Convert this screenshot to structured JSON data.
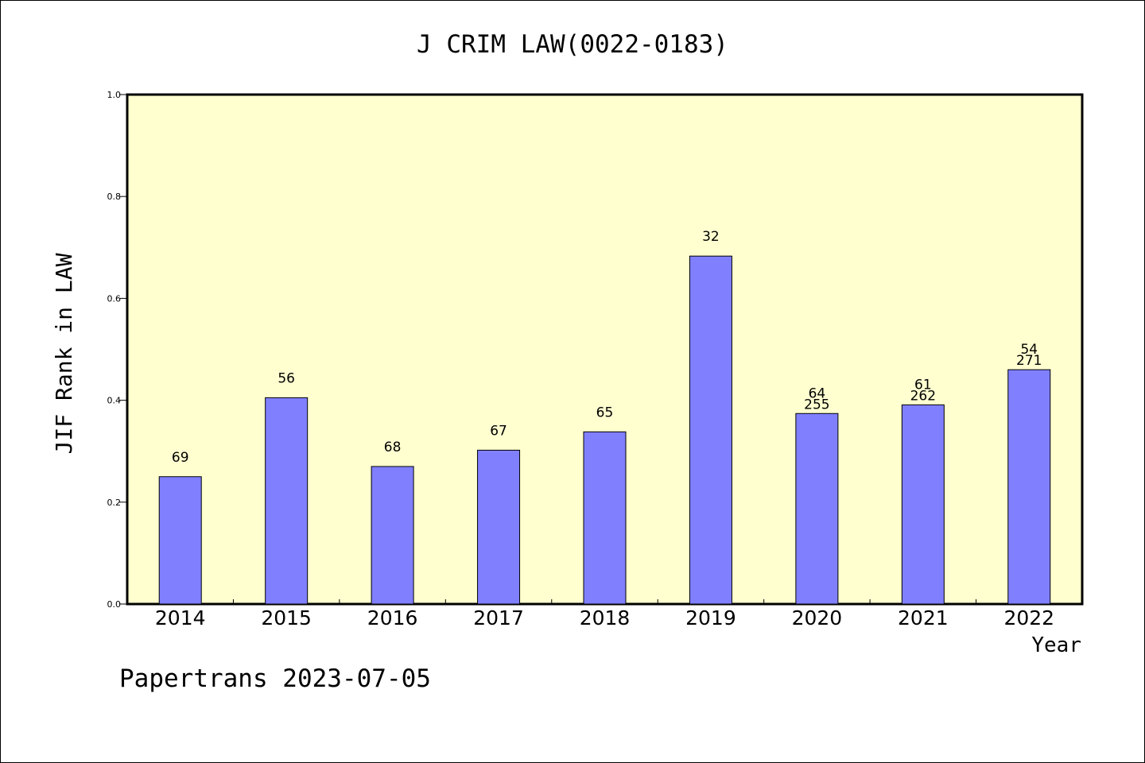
{
  "chart_data": {
    "type": "bar",
    "title": "J CRIM LAW(0022-0183)",
    "ylabel": "JIF Rank in LAW",
    "xlabel": "Year",
    "footer": "Papertrans 2023-07-05",
    "ylim": [
      0,
      1.0
    ],
    "yticks": [
      "0.0",
      "0.2",
      "0.4",
      "0.6",
      "0.8",
      "1.0"
    ],
    "categories": [
      "2014",
      "2015",
      "2016",
      "2017",
      "2018",
      "2019",
      "2020",
      "2021",
      "2022"
    ],
    "values": [
      0.25,
      0.405,
      0.27,
      0.302,
      0.338,
      0.683,
      0.374,
      0.391,
      0.46
    ],
    "labels": [
      [
        "69"
      ],
      [
        "56"
      ],
      [
        "68"
      ],
      [
        "67"
      ],
      [
        "65"
      ],
      [
        "32"
      ],
      [
        "64",
        "255"
      ],
      [
        "61",
        "262"
      ],
      [
        "54",
        "271"
      ]
    ],
    "colors": {
      "plot_bg": "#ffffd0",
      "bar_fill": "#8080ff",
      "axis": "#000000"
    },
    "grid": false
  }
}
